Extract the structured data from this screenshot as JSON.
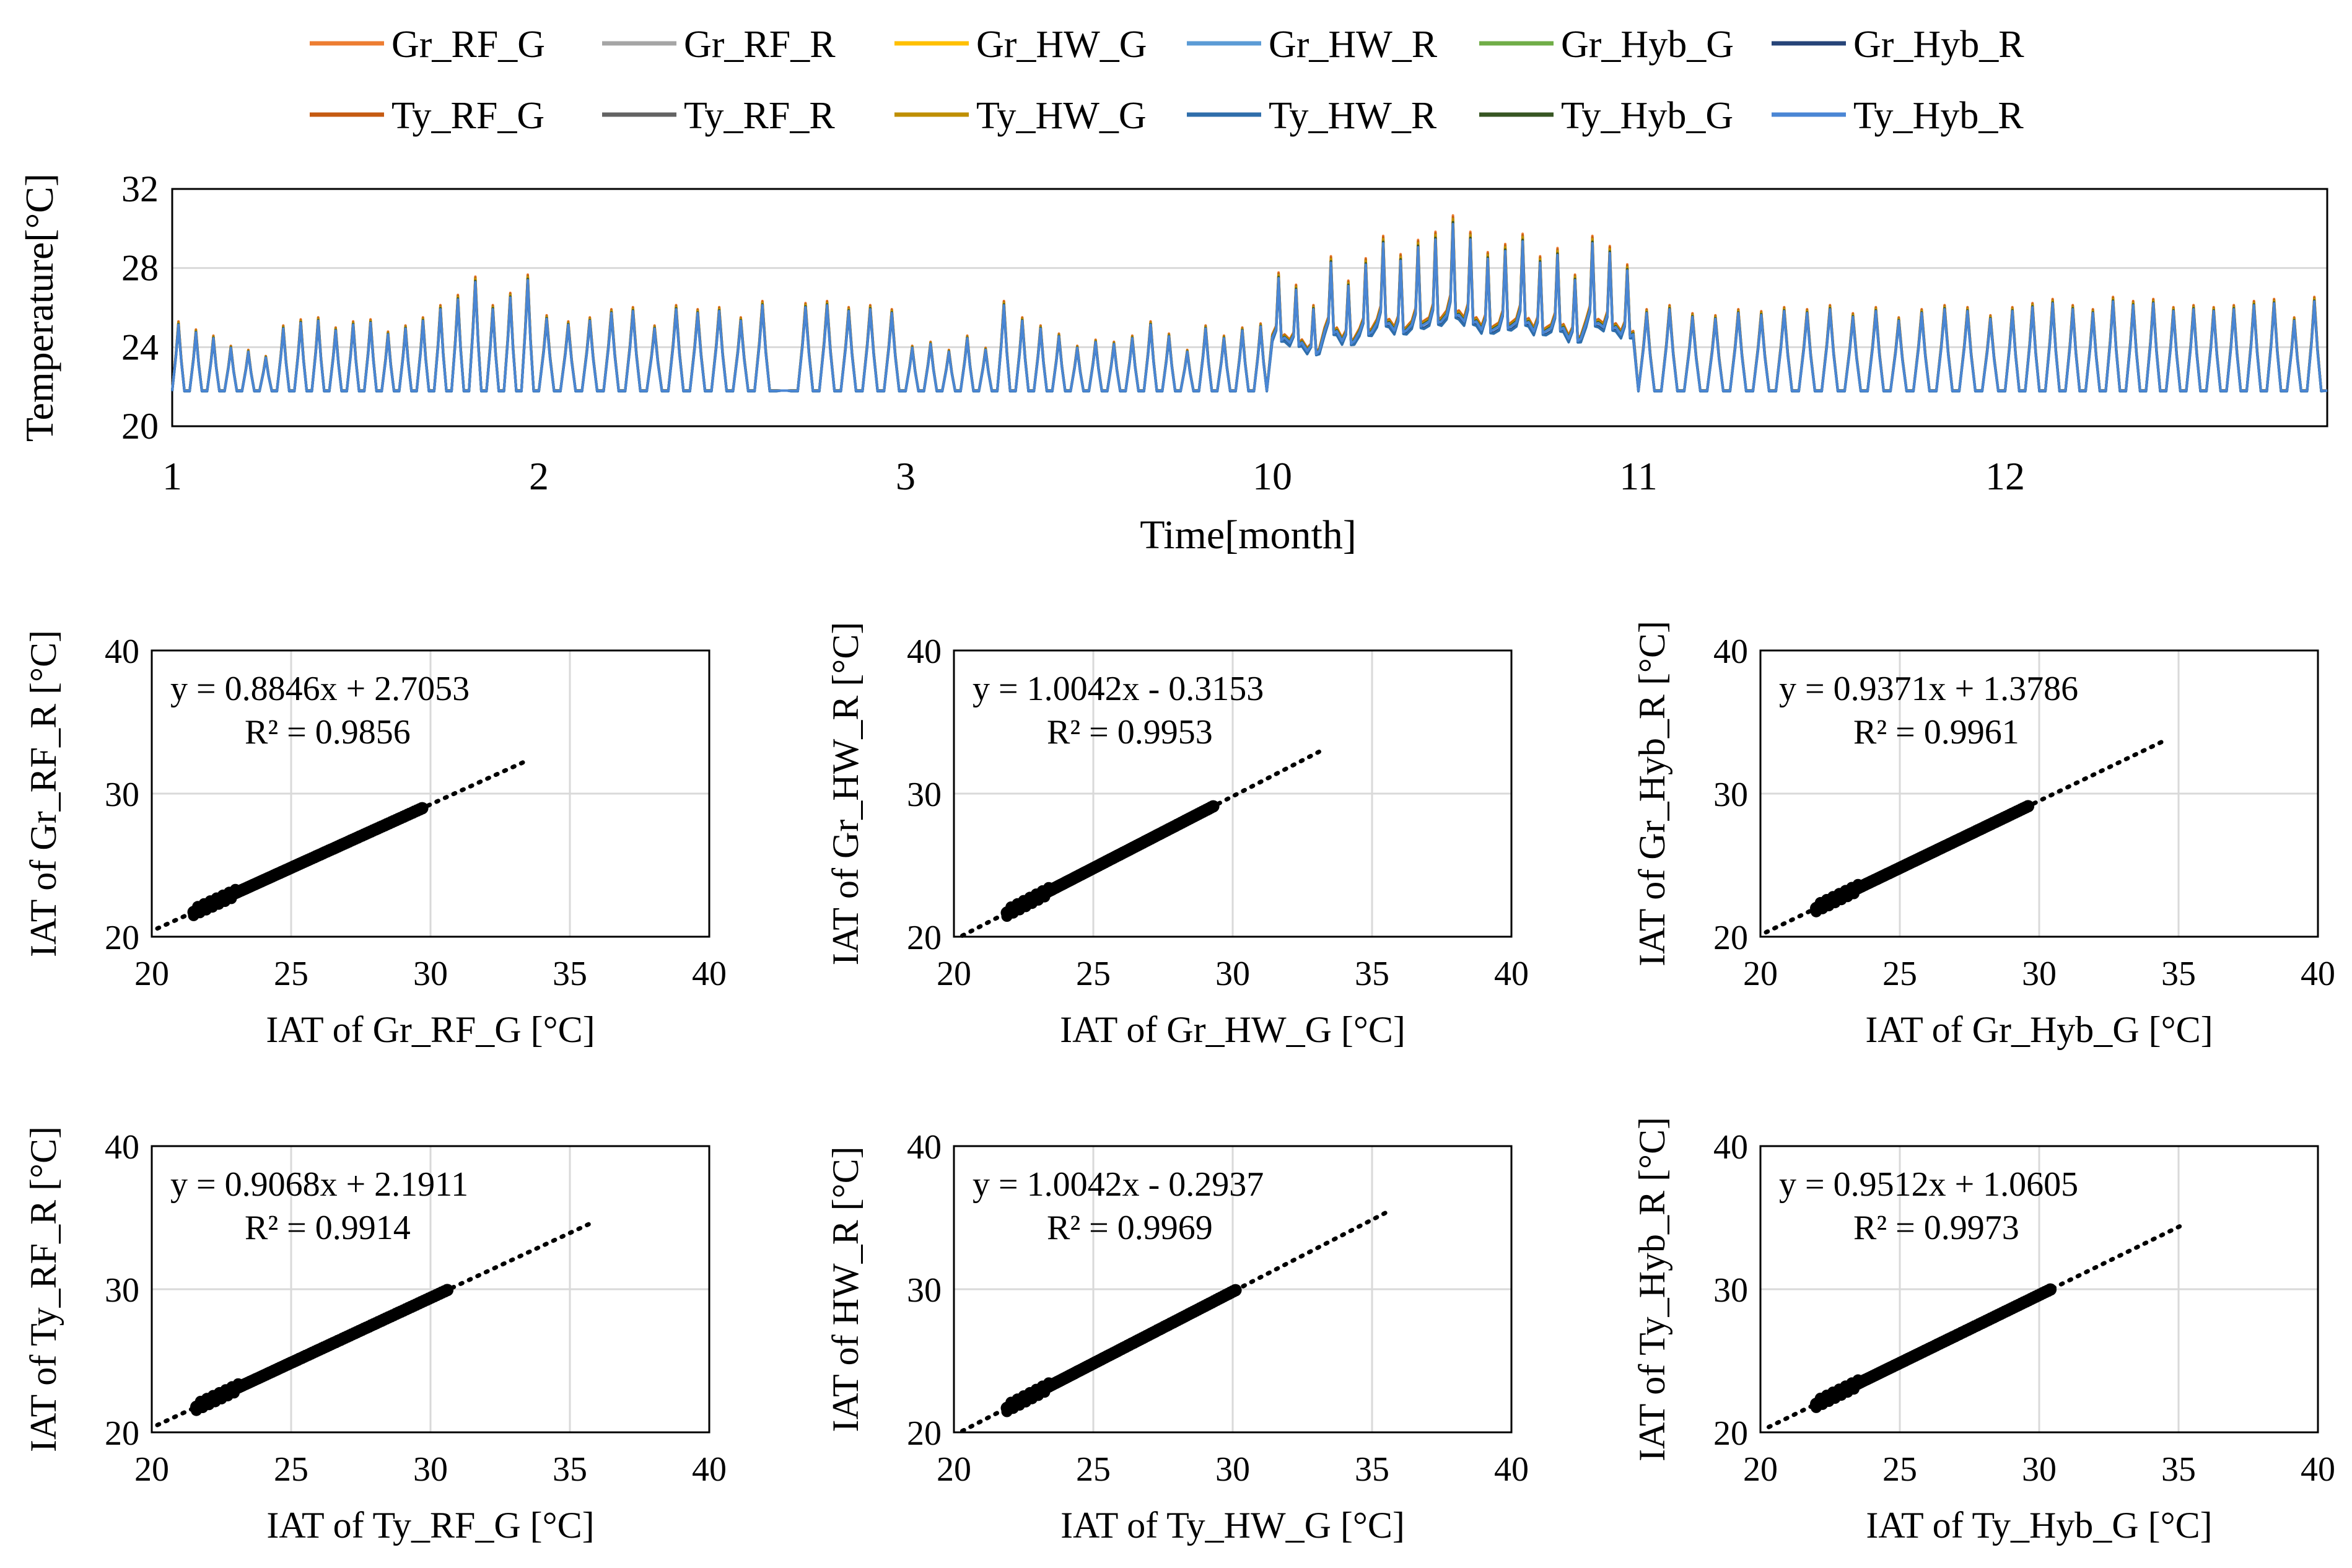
{
  "legend": {
    "position": "top",
    "entries": [
      {
        "name": "Gr_RF_G",
        "color": "#ED7D31"
      },
      {
        "name": "Gr_RF_R",
        "color": "#A5A5A5"
      },
      {
        "name": "Gr_HW_G",
        "color": "#FFC000"
      },
      {
        "name": "Gr_HW_R",
        "color": "#5B9BD5"
      },
      {
        "name": "Gr_Hyb_G",
        "color": "#70AD47"
      },
      {
        "name": "Gr_Hyb_R",
        "color": "#264478"
      },
      {
        "name": "Ty_RF_G",
        "color": "#C55A11"
      },
      {
        "name": "Ty_RF_R",
        "color": "#636363"
      },
      {
        "name": "Ty_HW_G",
        "color": "#BF8F00"
      },
      {
        "name": "Ty_HW_R",
        "color": "#2F6EAB"
      },
      {
        "name": "Ty_Hyb_G",
        "color": "#375623"
      },
      {
        "name": "Ty_Hyb_R",
        "color": "#4A86D4"
      }
    ]
  },
  "chart_data": [
    {
      "type": "line",
      "xlabel": "Time[month]",
      "ylabel": "Temperature[°C]",
      "ylim": [
        20,
        32
      ],
      "yticks": [
        "20",
        "24",
        "28",
        "32"
      ],
      "xticks": [
        "1",
        "2",
        "3",
        "10",
        "11",
        "12"
      ],
      "grid": true,
      "series_names": [
        "Gr_RF_G",
        "Gr_RF_R",
        "Gr_HW_G",
        "Gr_HW_R",
        "Gr_Hyb_G",
        "Gr_Hyb_R",
        "Ty_RF_G",
        "Ty_RF_R",
        "Ty_HW_G",
        "Ty_HW_R",
        "Ty_Hyb_G",
        "Ty_Hyb_R"
      ],
      "daily_peak_temperature": {
        "month_1": [
          25.2,
          24.8,
          24.5,
          24.0,
          23.8,
          23.5,
          25.0,
          25.3,
          25.4,
          24.9,
          25.2,
          25.3,
          24.7,
          25.0,
          25.4,
          26.0,
          26.5,
          27.4,
          26.0,
          26.6,
          27.5
        ],
        "month_2": [
          25.5,
          25.2,
          25.4,
          25.8,
          25.9,
          25.0,
          26.0,
          25.8,
          25.9,
          25.4,
          26.2,
          21.8,
          26.1,
          26.2,
          25.9,
          26.0,
          25.8
        ],
        "month_3": [
          24.0,
          24.2,
          23.8,
          24.5,
          23.9,
          26.2,
          25.4,
          25.0,
          24.6,
          24.0,
          24.3,
          24.2,
          24.5,
          25.2,
          24.6,
          23.8,
          25.0,
          24.5,
          24.9,
          25.1
        ],
        "month_10": [
          27.6,
          27.0,
          26.0,
          28.4,
          27.2,
          28.3,
          29.4,
          28.5,
          29.2,
          29.6,
          30.4,
          29.6,
          28.6,
          29.0,
          29.5,
          28.4,
          28.8,
          27.5,
          29.4,
          28.9,
          28.0
        ],
        "month_11": [
          25.8,
          26.0,
          25.6,
          25.5,
          25.8,
          25.7,
          25.9,
          25.8,
          26.0,
          25.6,
          25.9,
          25.4,
          25.8,
          26.0,
          25.9,
          25.5
        ],
        "month_12": [
          25.9,
          26.1,
          26.3,
          26.0,
          25.8,
          26.4,
          26.2,
          26.3,
          25.9,
          26.0,
          25.9,
          26.0,
          26.2,
          26.3,
          25.4,
          26.4
        ]
      },
      "baseline_temperature": 21.8
    },
    {
      "type": "scatter",
      "xlabel": "IAT of Gr_RF_G [°C]",
      "ylabel": "IAT of Gr_RF_R [°C]",
      "xlim": [
        20,
        40
      ],
      "ylim": [
        20,
        40
      ],
      "xticks": [
        "20",
        "25",
        "30",
        "35",
        "40"
      ],
      "yticks": [
        "20",
        "30",
        "40"
      ],
      "equation": "y = 0.8846x + 2.7053",
      "r2": "R² = 0.9856",
      "slope": 0.8846,
      "intercept": 2.7053,
      "data_range": [
        21.5,
        29.7
      ],
      "trend_range": [
        20.2,
        33.5
      ]
    },
    {
      "type": "scatter",
      "xlabel": "IAT of Gr_HW_G [°C]",
      "ylabel": "IAT of Gr_HW_R [°C]",
      "xlim": [
        20,
        40
      ],
      "ylim": [
        20,
        40
      ],
      "xticks": [
        "20",
        "25",
        "30",
        "35",
        "40"
      ],
      "yticks": [
        "20",
        "30",
        "40"
      ],
      "equation": "y = 1.0042x - 0.3153",
      "r2": "R² = 0.9953",
      "slope": 1.0042,
      "intercept": -0.3153,
      "data_range": [
        21.9,
        29.3
      ],
      "trend_range": [
        20.3,
        33.3
      ]
    },
    {
      "type": "scatter",
      "xlabel": "IAT of Gr_Hyb_G [°C]",
      "ylabel": "IAT of Gr_Hyb_R [°C]",
      "xlim": [
        20,
        40
      ],
      "ylim": [
        20,
        40
      ],
      "xticks": [
        "20",
        "25",
        "30",
        "35",
        "40"
      ],
      "yticks": [
        "20",
        "30",
        "40"
      ],
      "equation": "y = 0.9371x + 1.3786",
      "r2": "R² = 0.9961",
      "slope": 0.9371,
      "intercept": 1.3786,
      "data_range": [
        22.0,
        29.6
      ],
      "trend_range": [
        20.2,
        34.5
      ]
    },
    {
      "type": "scatter",
      "xlabel": "IAT of Ty_RF_G [°C]",
      "ylabel": "IAT of Ty_RF_R [°C]",
      "xlim": [
        20,
        40
      ],
      "ylim": [
        20,
        40
      ],
      "xticks": [
        "20",
        "25",
        "30",
        "35",
        "40"
      ],
      "yticks": [
        "20",
        "30",
        "40"
      ],
      "equation": "y = 0.9068x + 2.1911",
      "r2": "R² = 0.9914",
      "slope": 0.9068,
      "intercept": 2.1911,
      "data_range": [
        21.6,
        30.6
      ],
      "trend_range": [
        20.2,
        35.8
      ]
    },
    {
      "type": "scatter",
      "xlabel": "IAT of Ty_HW_G [°C]",
      "ylabel": "IAT of HW_R [°C]",
      "xlim": [
        20,
        40
      ],
      "ylim": [
        20,
        40
      ],
      "xticks": [
        "20",
        "25",
        "30",
        "35",
        "40"
      ],
      "yticks": [
        "20",
        "30",
        "40"
      ],
      "equation": "y = 1.0042x - 0.2937",
      "r2": "R² = 0.9969",
      "slope": 1.0042,
      "intercept": -0.2937,
      "data_range": [
        21.9,
        30.1
      ],
      "trend_range": [
        20.3,
        35.5
      ]
    },
    {
      "type": "scatter",
      "xlabel": "IAT of Ty_Hyb_G [°C]",
      "ylabel": "IAT of Ty_Hyb_R [°C]",
      "xlim": [
        20,
        40
      ],
      "ylim": [
        20,
        40
      ],
      "xticks": [
        "20",
        "25",
        "30",
        "35",
        "40"
      ],
      "yticks": [
        "20",
        "30",
        "40"
      ],
      "equation": "y = 0.9512x + 1.0605",
      "r2": "R² = 0.9973",
      "slope": 0.9512,
      "intercept": 1.0605,
      "data_range": [
        22.0,
        30.4
      ],
      "trend_range": [
        20.3,
        35.2
      ]
    }
  ]
}
